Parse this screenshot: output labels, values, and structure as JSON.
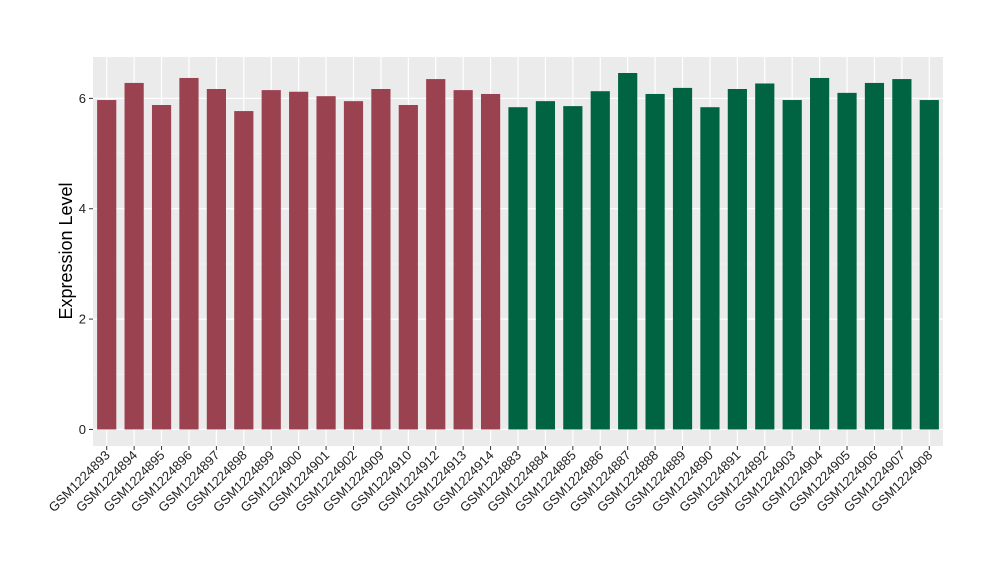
{
  "chart_data": {
    "type": "bar",
    "title": "",
    "xlabel": "",
    "ylabel": "Expression Level",
    "ylim": [
      -0.3,
      6.75
    ],
    "yticks": [
      0,
      2,
      4,
      6
    ],
    "grid": true,
    "legend": "none",
    "categories": [
      "GSM1224893",
      "GSM1224894",
      "GSM1224895",
      "GSM1224896",
      "GSM1224897",
      "GSM1224898",
      "GSM1224899",
      "GSM1224900",
      "GSM1224901",
      "GSM1224902",
      "GSM1224909",
      "GSM1224910",
      "GSM1224912",
      "GSM1224913",
      "GSM1224914",
      "GSM1224883",
      "GSM1224884",
      "GSM1224885",
      "GSM1224886",
      "GSM1224887",
      "GSM1224888",
      "GSM1224889",
      "GSM1224890",
      "GSM1224891",
      "GSM1224892",
      "GSM1224903",
      "GSM1224904",
      "GSM1224905",
      "GSM1224906",
      "GSM1224907",
      "GSM1224908"
    ],
    "values": [
      5.97,
      6.28,
      5.88,
      6.37,
      6.17,
      5.77,
      6.15,
      6.12,
      6.04,
      5.95,
      6.17,
      5.88,
      6.35,
      6.15,
      6.08,
      5.84,
      5.95,
      5.86,
      6.13,
      6.46,
      6.08,
      6.19,
      5.84,
      6.17,
      6.27,
      5.97,
      6.37,
      6.1,
      6.28,
      6.35,
      5.97
    ],
    "group_index": [
      0,
      0,
      0,
      0,
      0,
      0,
      0,
      0,
      0,
      0,
      0,
      0,
      0,
      0,
      0,
      1,
      1,
      1,
      1,
      1,
      1,
      1,
      1,
      1,
      1,
      1,
      1,
      1,
      1,
      1,
      1
    ],
    "group_colors": [
      "#9b4250",
      "#006341"
    ]
  }
}
